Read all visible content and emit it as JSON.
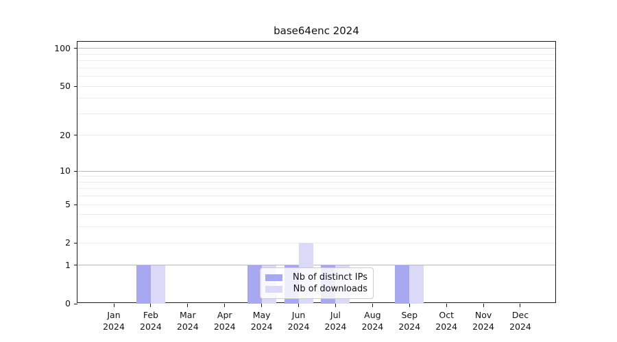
{
  "title": "base64enc 2024",
  "chart_data": {
    "type": "bar",
    "title": "base64enc 2024",
    "categories": [
      "Jan",
      "Feb",
      "Mar",
      "Apr",
      "May",
      "Jun",
      "Jul",
      "Aug",
      "Sep",
      "Oct",
      "Nov",
      "Dec"
    ],
    "year": "2024",
    "series": [
      {
        "name": "Nb of distinct IPs",
        "color": "#a8a8f0",
        "values": [
          0,
          1,
          0,
          0,
          1,
          1,
          1,
          0,
          1,
          0,
          0,
          0
        ]
      },
      {
        "name": "Nb of downloads",
        "color": "#dadaf8",
        "values": [
          0,
          1,
          0,
          0,
          1,
          2,
          1,
          0,
          1,
          0,
          0,
          0
        ]
      }
    ],
    "yscale": "log1p",
    "ylim": [
      0,
      113
    ],
    "yticks": [
      0,
      1,
      2,
      5,
      10,
      20,
      50,
      100
    ],
    "minor_gridline_values": [
      2,
      3,
      4,
      5,
      6,
      7,
      8,
      9,
      20,
      30,
      40,
      50,
      60,
      70,
      80,
      90
    ],
    "major_gridline_values": [
      1,
      10,
      100
    ],
    "grid": "horizontal",
    "legend_position": "lower-center",
    "colors": {
      "grid_minor": "#ececec",
      "grid_major": "#b9b9b9",
      "spine": "#1a1a1a",
      "text": "#111111"
    }
  },
  "legend": {
    "items": [
      {
        "label": "Nb of distinct IPs"
      },
      {
        "label": "Nb of downloads"
      }
    ]
  }
}
